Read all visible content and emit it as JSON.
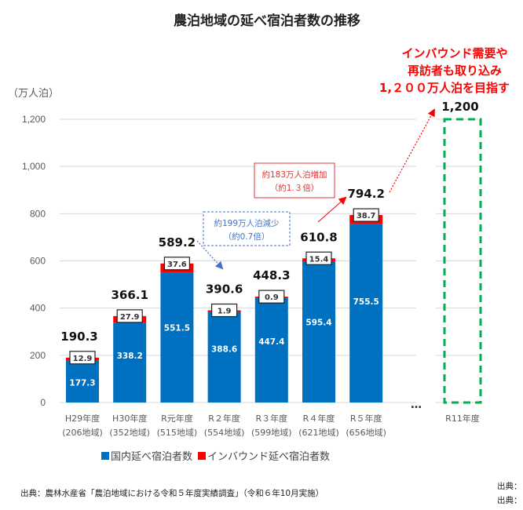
{
  "chart_data": {
    "type": "bar",
    "stacked": true,
    "title": "農泊地域の延べ宿泊者数の推移",
    "ylabel": "（万人泊）",
    "ylim": [
      0,
      1200
    ],
    "yticks": [
      0,
      200,
      400,
      600,
      800,
      1000,
      1200
    ],
    "ytick_labels": [
      "0",
      "200",
      "400",
      "600",
      "800",
      "1,000",
      "1,200"
    ],
    "grid": true,
    "categories": [
      "H29年度",
      "H30年度",
      "R元年度",
      "R２年度",
      "R３年度",
      "R４年度",
      "R５年度"
    ],
    "category_sublabels": [
      "(206地域)",
      "(352地域)",
      "(515地域)",
      "(554地域)",
      "(599地域)",
      "(621地域)",
      "(656地域)"
    ],
    "series": [
      {
        "name": "国内延べ宿泊者数",
        "color": "#0070c0",
        "values": [
          177.3,
          338.2,
          551.5,
          388.6,
          447.4,
          595.4,
          755.5
        ]
      },
      {
        "name": "インバウンド延べ宿泊者数",
        "color": "#ff0000",
        "values": [
          12.9,
          27.9,
          37.6,
          1.9,
          0.9,
          15.4,
          38.7
        ]
      }
    ],
    "totals": [
      "190.3",
      "366.1",
      "589.2",
      "390.6",
      "448.3",
      "610.8",
      "794.2"
    ],
    "ellipsis": "…",
    "target": {
      "category": "R11年度",
      "value": 1200,
      "label": "1,200",
      "color": "#00b050",
      "style": "dashed-outline"
    },
    "annotations": {
      "decrease": {
        "lines": [
          "約199万人泊減少",
          "（約0.7倍）"
        ],
        "color": "#4472c4"
      },
      "increase": {
        "lines": [
          "約183万人泊増加",
          "（約1.３倍）"
        ],
        "color": "#e53333"
      },
      "goal": {
        "lines": [
          "インバウンド需要や",
          "再訪者も取り込み",
          "1,２００万人泊を目指す"
        ],
        "color": "#ff0000"
      }
    },
    "legend": {
      "position": "bottom",
      "items": [
        "国内延べ宿泊者数",
        "インバウンド延べ宿泊者数"
      ]
    }
  },
  "source": "出典：農林水産省「農泊地域における令和５年度実績調査」（令和６年10月実施）",
  "source_right": [
    "出典：",
    "出典："
  ]
}
